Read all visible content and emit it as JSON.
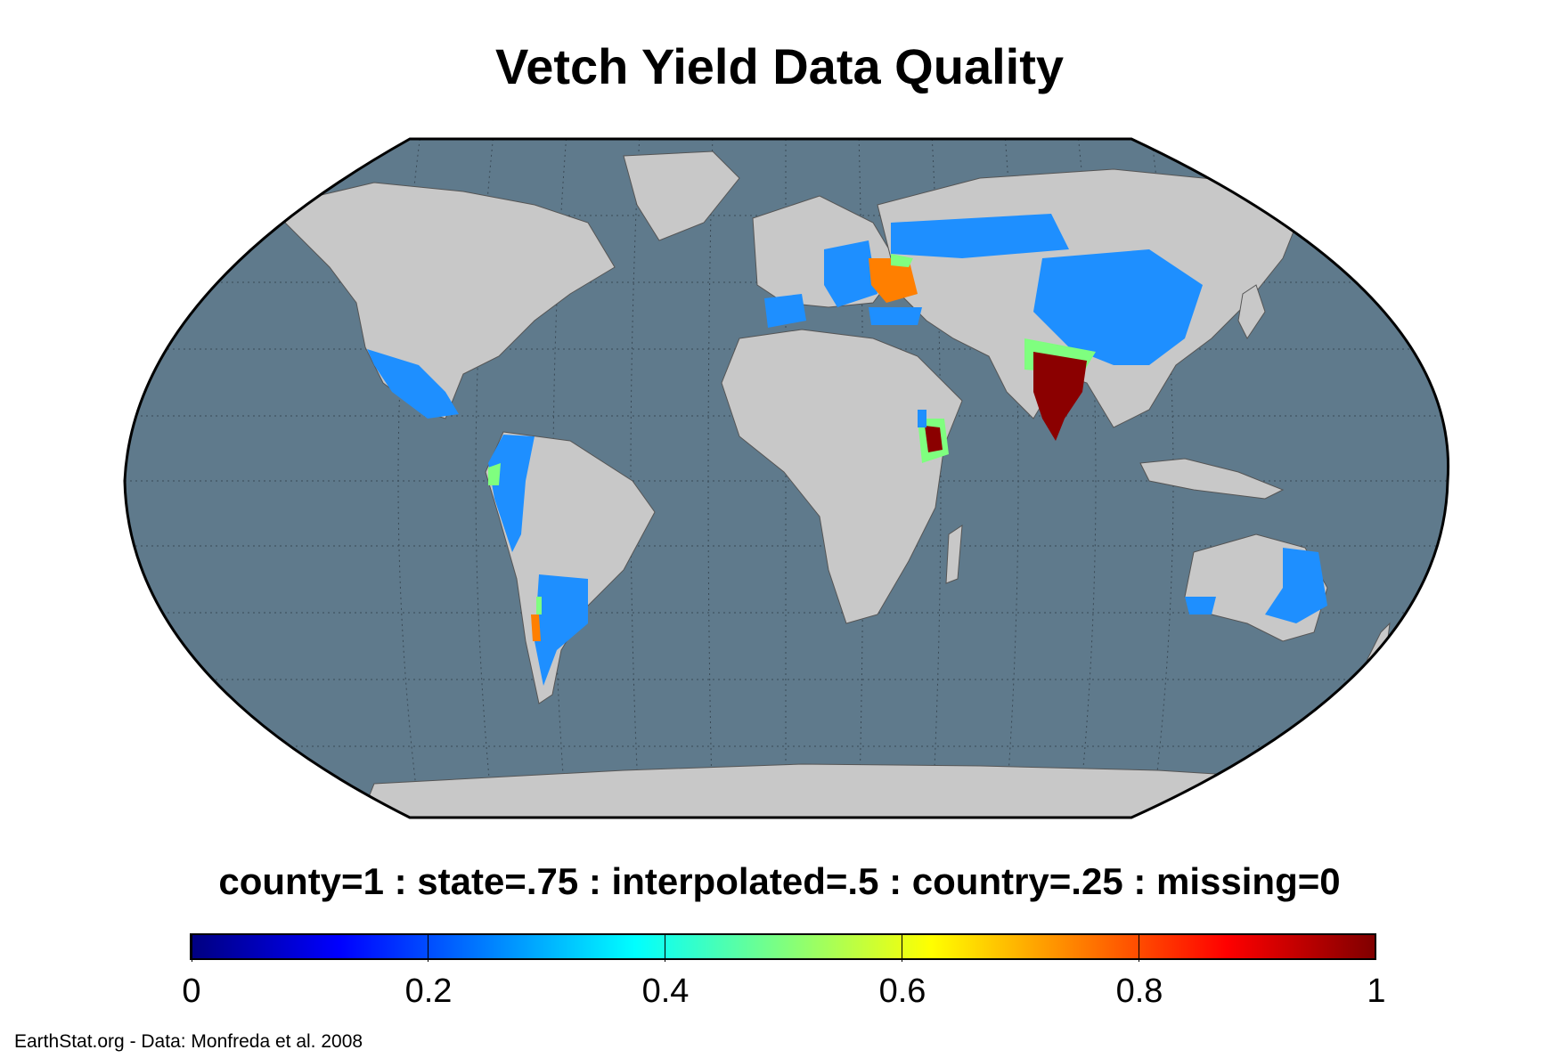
{
  "title": "Vetch Yield Data Quality",
  "legend": {
    "label": "county=1 : state=.75 : interpolated=.5 : country=.25 : missing=0",
    "colormap": "jet",
    "range": [
      0,
      1
    ],
    "ticks": [
      "0",
      "0.2",
      "0.4",
      "0.6",
      "0.8",
      "1"
    ],
    "colors": [
      "#000080",
      "#0000ff",
      "#007fff",
      "#00ffff",
      "#7fff7f",
      "#ffff00",
      "#ff7f00",
      "#ff0000",
      "#800000"
    ]
  },
  "map": {
    "projection": "Robinson",
    "ocean_color": "#5f7a8c",
    "land_color": "#c8c8c8",
    "graticule": true,
    "regions": [
      {
        "name": "India",
        "value": 1.0,
        "color": "#8b0000"
      },
      {
        "name": "Ethiopia",
        "value": 1.0,
        "color": "#8b0000"
      },
      {
        "name": "Ukraine",
        "value": 0.75,
        "color": "#ff7f00"
      },
      {
        "name": "Chile",
        "value": 0.75,
        "color": "#ff7f00"
      },
      {
        "name": "Ecuador",
        "value": 0.5,
        "color": "#7fff7f"
      },
      {
        "name": "Mexico",
        "value": 0.25,
        "color": "#1e8fff"
      },
      {
        "name": "China",
        "value": 0.25,
        "color": "#1e8fff"
      },
      {
        "name": "Russia",
        "value": 0.25,
        "color": "#1e8fff"
      },
      {
        "name": "Australia",
        "value": 0.25,
        "color": "#1e8fff"
      },
      {
        "name": "Argentina",
        "value": 0.25,
        "color": "#1e8fff"
      },
      {
        "name": "Europe",
        "value": 0.25,
        "color": "#1e8fff"
      }
    ]
  },
  "footer": "EarthStat.org - Data: Monfreda et al. 2008"
}
